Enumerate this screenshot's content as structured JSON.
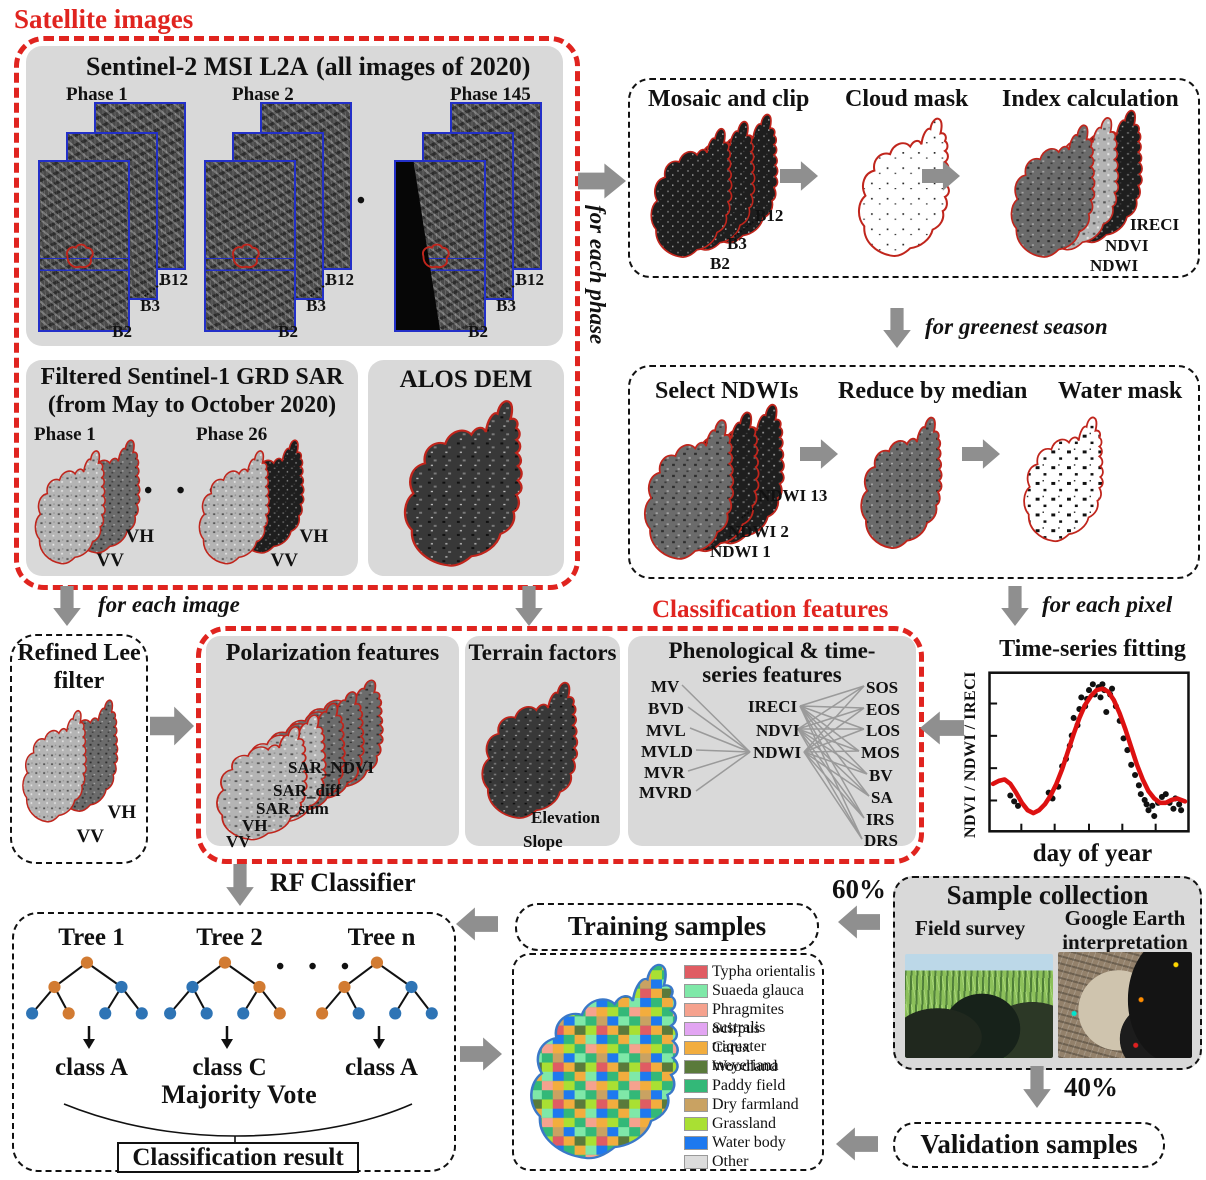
{
  "labels": {
    "satellite_images": "Satellite images",
    "for_each_phase": "for each phase",
    "for_greenest_season": "for greenest season",
    "for_each_pixel": "for each pixel",
    "for_each_image": "for each image",
    "classification_features": "Classification features",
    "rf_classifier": "RF Classifier",
    "pct60": "60%",
    "pct40": "40%",
    "ellipsis": "• • •"
  },
  "sentinel2": {
    "title": "Sentinel-2 MSI L2A",
    "subtitle": "(all images of 2020)",
    "phases": [
      "Phase 1",
      "Phase 2",
      "Phase 145"
    ],
    "bands": [
      "B2",
      "B3",
      "B12"
    ]
  },
  "sentinel1": {
    "title_line1": "Filtered Sentinel-1 GRD SAR",
    "title_line2": "(from May to October 2020)",
    "phases": [
      "Phase 1",
      "Phase 26"
    ],
    "pol": [
      "VV",
      "VH"
    ]
  },
  "alos": {
    "title": "ALOS DEM"
  },
  "mosaic_flow": {
    "steps": [
      "Mosaic and clip",
      "Cloud mask",
      "Index calculation"
    ],
    "bands": [
      "B2",
      "B3",
      "B12"
    ],
    "indices": [
      "IRECI",
      "NDVI",
      "NDWI"
    ]
  },
  "ndwi_flow": {
    "steps": [
      "Select NDWIs",
      "Reduce by median",
      "Water mask"
    ],
    "ndwis": [
      "NDWI 1",
      "NDWI 2",
      "NDWI 13"
    ]
  },
  "refined_lee": {
    "title_line1": "Refined Lee",
    "title_line2": "filter",
    "pol": [
      "VV",
      "VH"
    ]
  },
  "polarization": {
    "title": "Polarization features",
    "layers": [
      "VV",
      "VH",
      "SAR_sum",
      "SAR_diff",
      "SAR_NDVI"
    ]
  },
  "terrain": {
    "title": "Terrain factors",
    "labels": [
      "Elevation",
      "Slope"
    ]
  },
  "pheno": {
    "title_line1": "Phenological & time-",
    "title_line2": "series features",
    "inputs": [
      "MV",
      "BVD",
      "MVL",
      "MVLD",
      "MVR",
      "MVRD"
    ],
    "indices": [
      "IRECI",
      "NDVI",
      "NDWI"
    ],
    "outputs": [
      "SOS",
      "EOS",
      "LOS",
      "MOS",
      "BV",
      "SA",
      "IRS",
      "DRS"
    ]
  },
  "chart_data": {
    "type": "line",
    "title": "Time-series fitting",
    "xlabel": "day of year",
    "ylabel": "NDVI / NDWI / IRECI",
    "note": "schematic seasonal fitting curve; axes have unlabeled ticks, values normalized 0-1",
    "x_range_days": [
      0,
      365
    ],
    "curve_color": "#dd1111",
    "point_color": "#111111",
    "curve": [
      [
        0,
        0.3
      ],
      [
        0.03,
        0.32
      ],
      [
        0.06,
        0.33
      ],
      [
        0.09,
        0.3
      ],
      [
        0.12,
        0.24
      ],
      [
        0.15,
        0.17
      ],
      [
        0.18,
        0.12
      ],
      [
        0.21,
        0.1
      ],
      [
        0.24,
        0.12
      ],
      [
        0.27,
        0.16
      ],
      [
        0.3,
        0.22
      ],
      [
        0.33,
        0.3
      ],
      [
        0.36,
        0.4
      ],
      [
        0.39,
        0.52
      ],
      [
        0.42,
        0.64
      ],
      [
        0.45,
        0.75
      ],
      [
        0.48,
        0.84
      ],
      [
        0.51,
        0.9
      ],
      [
        0.54,
        0.94
      ],
      [
        0.57,
        0.95
      ],
      [
        0.6,
        0.93
      ],
      [
        0.63,
        0.87
      ],
      [
        0.66,
        0.78
      ],
      [
        0.69,
        0.67
      ],
      [
        0.72,
        0.55
      ],
      [
        0.75,
        0.43
      ],
      [
        0.78,
        0.33
      ],
      [
        0.81,
        0.25
      ],
      [
        0.84,
        0.2
      ],
      [
        0.87,
        0.17
      ],
      [
        0.9,
        0.17
      ],
      [
        0.93,
        0.19
      ],
      [
        0.96,
        0.2
      ],
      [
        1,
        0.18
      ]
    ],
    "scatter": [
      [
        0.09,
        0.22
      ],
      [
        0.11,
        0.18
      ],
      [
        0.13,
        0.15
      ],
      [
        0.29,
        0.24
      ],
      [
        0.31,
        0.2
      ],
      [
        0.34,
        0.28
      ],
      [
        0.36,
        0.42
      ],
      [
        0.38,
        0.47
      ],
      [
        0.4,
        0.56
      ],
      [
        0.41,
        0.63
      ],
      [
        0.42,
        0.75
      ],
      [
        0.44,
        0.7
      ],
      [
        0.45,
        0.81
      ],
      [
        0.46,
        0.89
      ],
      [
        0.48,
        0.83
      ],
      [
        0.49,
        0.88
      ],
      [
        0.5,
        0.94
      ],
      [
        0.52,
        0.98
      ],
      [
        0.53,
        0.91
      ],
      [
        0.55,
        0.96
      ],
      [
        0.56,
        0.89
      ],
      [
        0.57,
        0.98
      ],
      [
        0.58,
        0.94
      ],
      [
        0.59,
        0.79
      ],
      [
        0.61,
        0.91
      ],
      [
        0.62,
        0.95
      ],
      [
        0.64,
        0.83
      ],
      [
        0.66,
        0.73
      ],
      [
        0.68,
        0.61
      ],
      [
        0.7,
        0.53
      ],
      [
        0.72,
        0.43
      ],
      [
        0.74,
        0.36
      ],
      [
        0.76,
        0.29
      ],
      [
        0.77,
        0.23
      ],
      [
        0.79,
        0.19
      ],
      [
        0.8,
        0.16
      ],
      [
        0.81,
        0.12
      ],
      [
        0.83,
        0.15
      ],
      [
        0.84,
        0.08
      ],
      [
        0.86,
        0.17
      ],
      [
        0.88,
        0.21
      ],
      [
        0.9,
        0.23
      ],
      [
        0.92,
        0.17
      ],
      [
        0.94,
        0.13
      ],
      [
        0.95,
        0.2
      ],
      [
        0.97,
        0.16
      ],
      [
        0.98,
        0.12
      ]
    ]
  },
  "rf": {
    "trees": [
      {
        "label": "Tree 1",
        "result": "class A",
        "nodes": [
          "#d27b32",
          "#d27b32",
          "#2e74b5",
          "#2e74b5",
          "#d27b32",
          "#2e74b5",
          "#2e74b5"
        ]
      },
      {
        "label": "Tree 2",
        "result": "class C",
        "nodes": [
          "#d27b32",
          "#2e74b5",
          "#d27b32",
          "#2e74b5",
          "#2e74b5",
          "#2e74b5",
          "#d27b32"
        ]
      },
      {
        "label": "Tree n",
        "result": "class A",
        "nodes": [
          "#d27b32",
          "#d27b32",
          "#2e74b5",
          "#d27b32",
          "#2e74b5",
          "#2e74b5",
          "#2e74b5"
        ]
      }
    ],
    "majority_vote": "Majority Vote",
    "classification_result": "Classification result"
  },
  "training": {
    "title": "Training samples"
  },
  "legend": {
    "items": [
      {
        "name": "Typha orientalis",
        "color": "#e05c63"
      },
      {
        "name": "Suaeda glauca",
        "color": "#7fe8a8"
      },
      {
        "name": "Phragmites australis",
        "color": "#f5a28e"
      },
      {
        "name": "Scirpus triquater",
        "color": "#e2a5f2"
      },
      {
        "name": "Carex meyeriana",
        "color": "#f2ad3e"
      },
      {
        "name": "Woodland",
        "color": "#5a7a3b"
      },
      {
        "name": "Paddy field",
        "color": "#33b878"
      },
      {
        "name": "Dry farmland",
        "color": "#c9a262"
      },
      {
        "name": "Grassland",
        "color": "#a9e033"
      },
      {
        "name": "Water body",
        "color": "#1e79ef"
      },
      {
        "name": "Other",
        "color": "#dcdcdc"
      }
    ]
  },
  "samples": {
    "title": "Sample collection",
    "field_survey": "Field survey",
    "google_line1": "Google Earth",
    "google_line2": "interpretation"
  },
  "validation": {
    "title": "Validation samples"
  }
}
